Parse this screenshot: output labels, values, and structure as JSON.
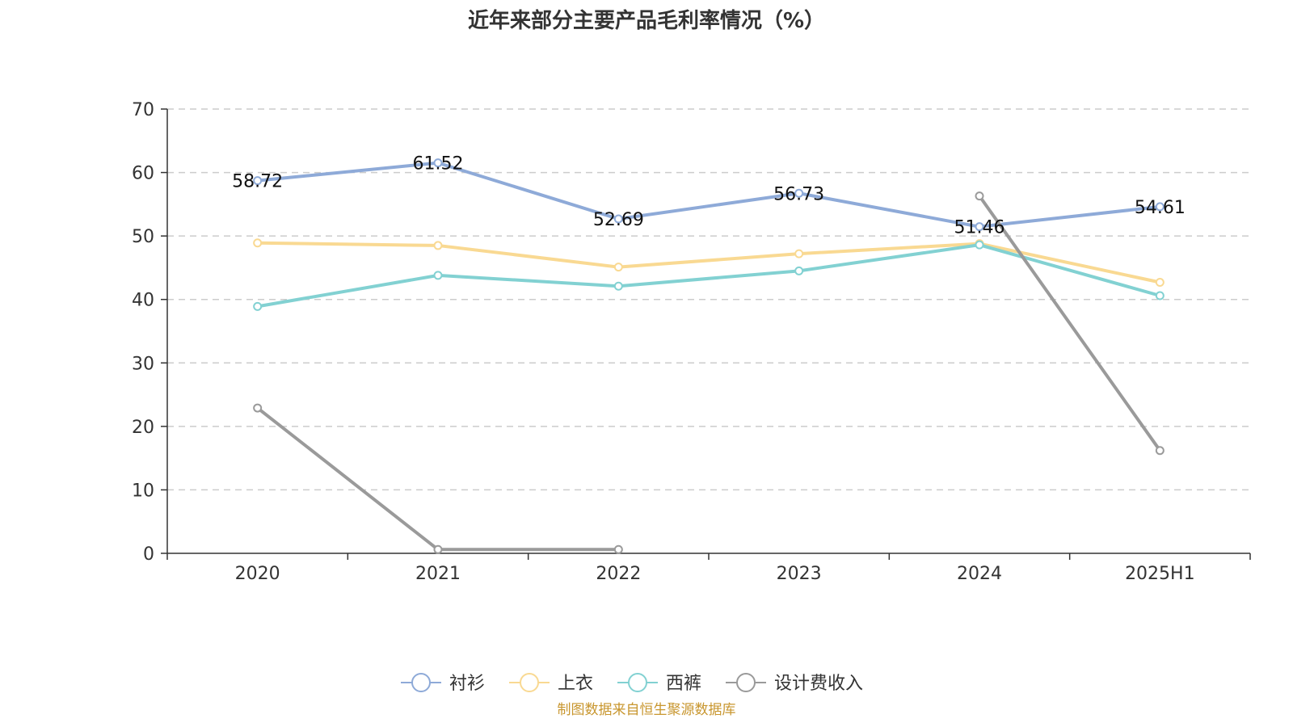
{
  "chart_data": {
    "type": "line",
    "title": "近年来部分主要产品毛利率情况（%）",
    "categories": [
      "2020",
      "2021",
      "2022",
      "2023",
      "2024",
      "2025H1"
    ],
    "ylim": [
      0,
      70
    ],
    "yticks": [
      0,
      10,
      20,
      30,
      40,
      50,
      60,
      70
    ],
    "grid": true,
    "legend_position": "bottom-center",
    "series": [
      {
        "name": "衬衫",
        "color": "#8eaad8",
        "values": [
          58.72,
          61.52,
          52.69,
          56.73,
          51.46,
          54.61
        ],
        "labels": [
          "58.72",
          "61.52",
          "52.69",
          "56.73",
          "51.46",
          "54.61"
        ]
      },
      {
        "name": "上衣",
        "color": "#f9d992",
        "values": [
          48.9,
          48.5,
          45.1,
          47.2,
          48.8,
          42.7
        ]
      },
      {
        "name": "西裤",
        "color": "#82d1d2",
        "values": [
          38.9,
          43.8,
          42.1,
          44.5,
          48.6,
          40.6
        ]
      },
      {
        "name": "设计费收入",
        "color": "#9a9a9a",
        "values": [
          22.9,
          0.6,
          0.6,
          null,
          56.3,
          16.2
        ]
      }
    ],
    "source": "制图数据来自恒生聚源数据库"
  }
}
